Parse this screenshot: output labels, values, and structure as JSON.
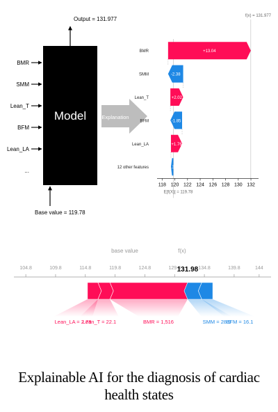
{
  "model_diagram": {
    "model_label": "Model",
    "output_label": "Output = 131.977",
    "base_label": "Base value = 119.78",
    "inputs": [
      "BMR",
      "SMM",
      "Lean_T",
      "BFM",
      "Lean_LA",
      "..."
    ],
    "arrow_label": "Explanation"
  },
  "chart_data": [
    {
      "type": "waterfall",
      "fx_label": "f(x) = 131.977",
      "base_label": "E[f(X)] = 119.78",
      "base_value": 119.78,
      "output_value": 131.977,
      "features": [
        "BMR",
        "SMM",
        "Lean_T",
        "BFM",
        "Lean_LA",
        "12 other features"
      ],
      "contributions": [
        13.04,
        -2.38,
        2.02,
        -1.85,
        1.76,
        -0.38
      ],
      "labels": [
        "+13.04",
        "-2.38",
        "+2.02",
        "-1.85",
        "+1.76",
        "-0.38"
      ],
      "xticks": [
        118,
        120,
        122,
        124,
        126,
        128,
        130,
        132
      ],
      "xlim": [
        117.2,
        133.2
      ],
      "colors": {
        "positive": "#ff0d57",
        "negative": "#1e88e5"
      }
    },
    {
      "type": "force",
      "base_value_label": "base value",
      "fx_label": "f(x)",
      "fx_value": "131.98",
      "base_value": 119.78,
      "output_value": 131.98,
      "xticks": [
        "104.8",
        "109.8",
        "114.8",
        "119.8",
        "124.8",
        "129.8",
        "134.8",
        "139.8",
        "144"
      ],
      "tick_values": [
        104.8,
        109.8,
        114.8,
        119.8,
        124.8,
        129.8,
        134.8,
        139.8,
        144
      ],
      "xlim": [
        102.8,
        146
      ],
      "positive": [
        {
          "label": "Lean_LA = 2.78",
          "value": 1.76
        },
        {
          "label": "Lean_T = 22.1",
          "value": 2.02
        },
        {
          "label": "BMR = 1,516",
          "value": 13.04
        }
      ],
      "negative": [
        {
          "label": "SMM = 28.9",
          "value": 2.38
        },
        {
          "label": "BFM = 16.1",
          "value": 1.85
        }
      ],
      "colors": {
        "positive": "#ff0d57",
        "negative": "#1e88e5"
      }
    }
  ],
  "caption": "Explainable AI for the diagnosis of cardiac health states"
}
